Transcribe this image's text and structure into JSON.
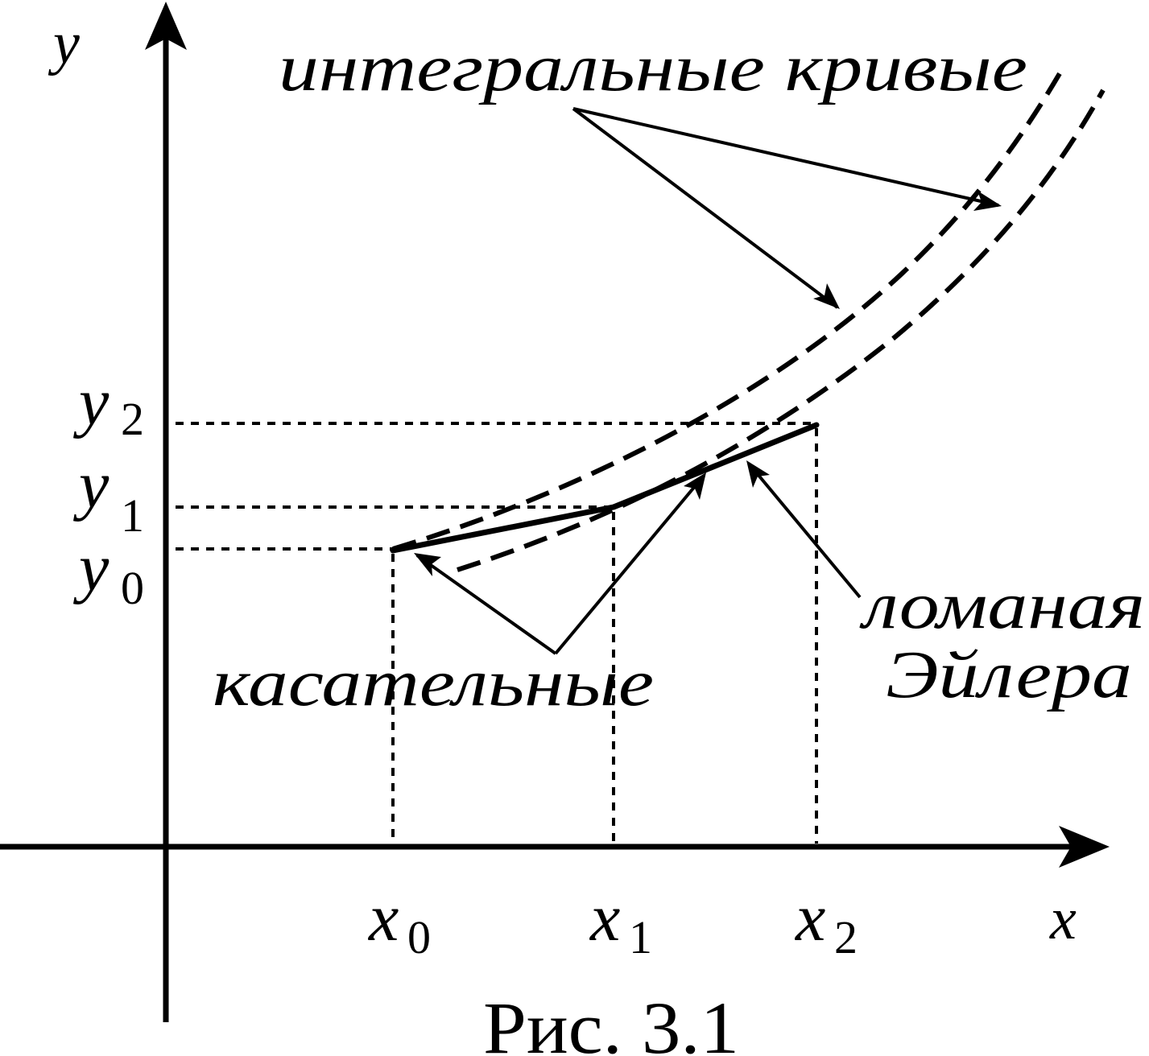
{
  "axes": {
    "x_label": "x",
    "y_label": "y",
    "x_ticks": [
      {
        "base": "x",
        "sub": "0"
      },
      {
        "base": "x",
        "sub": "1"
      },
      {
        "base": "x",
        "sub": "2"
      }
    ],
    "y_ticks": [
      {
        "base": "y",
        "sub": "0"
      },
      {
        "base": "y",
        "sub": "1"
      },
      {
        "base": "y",
        "sub": "2"
      }
    ]
  },
  "annotations": {
    "integral_curves": "интегральные кривые",
    "tangents": "касательные",
    "euler_line_1": "ломаная",
    "euler_line_2": "Эйлера"
  },
  "caption": "Рис. 3.1",
  "colors": {
    "stroke": "#000000",
    "background": "#ffffff"
  }
}
